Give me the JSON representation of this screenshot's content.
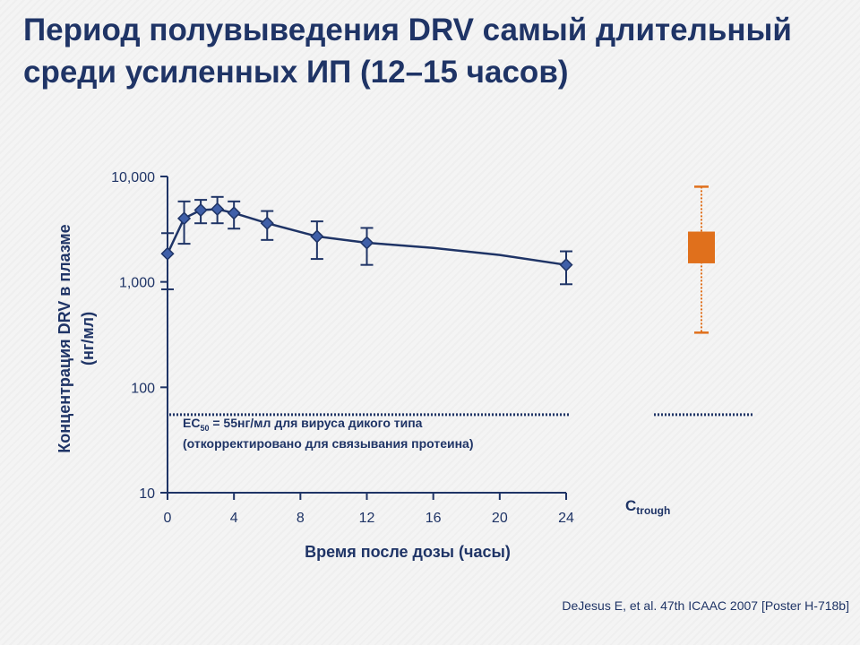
{
  "title_line1": "Период полувыведения DRV самый длительный",
  "title_line2": "среди усиленных ИП (12–15 часов)",
  "citation": "DeJesus E, et al. 47th ICAAC 2007 [Poster H-718b]",
  "colors": {
    "navy": "#1f3466",
    "orange": "#e0701c"
  },
  "chart_data": {
    "type": "line",
    "title": "",
    "xlabel": "Время после дозы (часы)",
    "ylabel_line1": "Концентрация DRV в плазме",
    "ylabel_line2": "(нг/мл)",
    "yscale": "log",
    "xlim": [
      0,
      24
    ],
    "ylim": [
      10,
      10000
    ],
    "x_ticks": [
      0,
      4,
      8,
      12,
      16,
      20,
      24
    ],
    "x_tick_labels": [
      "0",
      "4",
      "8",
      "12",
      "16",
      "20",
      "24"
    ],
    "y_ticks": [
      10,
      100,
      1000,
      10000
    ],
    "y_tick_labels": [
      "10",
      "100",
      "1,000",
      "10,000"
    ],
    "series": [
      {
        "points": [
          {
            "x": 0,
            "y": 1850,
            "lo": 850,
            "hi": 2900
          },
          {
            "x": 1,
            "y": 4000,
            "lo": 2300,
            "hi": 5800
          },
          {
            "x": 2,
            "y": 4800,
            "lo": 3600,
            "hi": 6000
          },
          {
            "x": 3,
            "y": 4900,
            "lo": 3600,
            "hi": 6400
          },
          {
            "x": 4,
            "y": 4500,
            "lo": 3200,
            "hi": 5800
          },
          {
            "x": 6,
            "y": 3600,
            "lo": 2500,
            "hi": 4700
          },
          {
            "x": 9,
            "y": 2700,
            "lo": 1650,
            "hi": 3750
          },
          {
            "x": 12,
            "y": 2350,
            "lo": 1450,
            "hi": 3250
          },
          {
            "x": 24,
            "y": 1450,
            "lo": 950,
            "hi": 1950
          }
        ],
        "curve": [
          {
            "x": 0,
            "y": 1850
          },
          {
            "x": 1,
            "y": 4000
          },
          {
            "x": 2,
            "y": 4800
          },
          {
            "x": 3,
            "y": 4900
          },
          {
            "x": 4,
            "y": 4500
          },
          {
            "x": 6,
            "y": 3600
          },
          {
            "x": 9,
            "y": 2700
          },
          {
            "x": 12,
            "y": 2350
          },
          {
            "x": 16,
            "y": 2100
          },
          {
            "x": 20,
            "y": 1800
          },
          {
            "x": 24,
            "y": 1450
          }
        ]
      }
    ],
    "ec50_value": 55,
    "ec50_line1_prefix": "EC",
    "ec50_line1_sub": "50",
    "ec50_line1_rest": " = 55нг/мл для вируса дикого типа",
    "ec50_line2": "(откорректировано для связывания протеина)",
    "ctrough": {
      "label_main": "C",
      "label_sub": "trough",
      "whisker_low": 330,
      "box_low": 1500,
      "box_high": 3000,
      "whisker_high": 8000
    }
  }
}
